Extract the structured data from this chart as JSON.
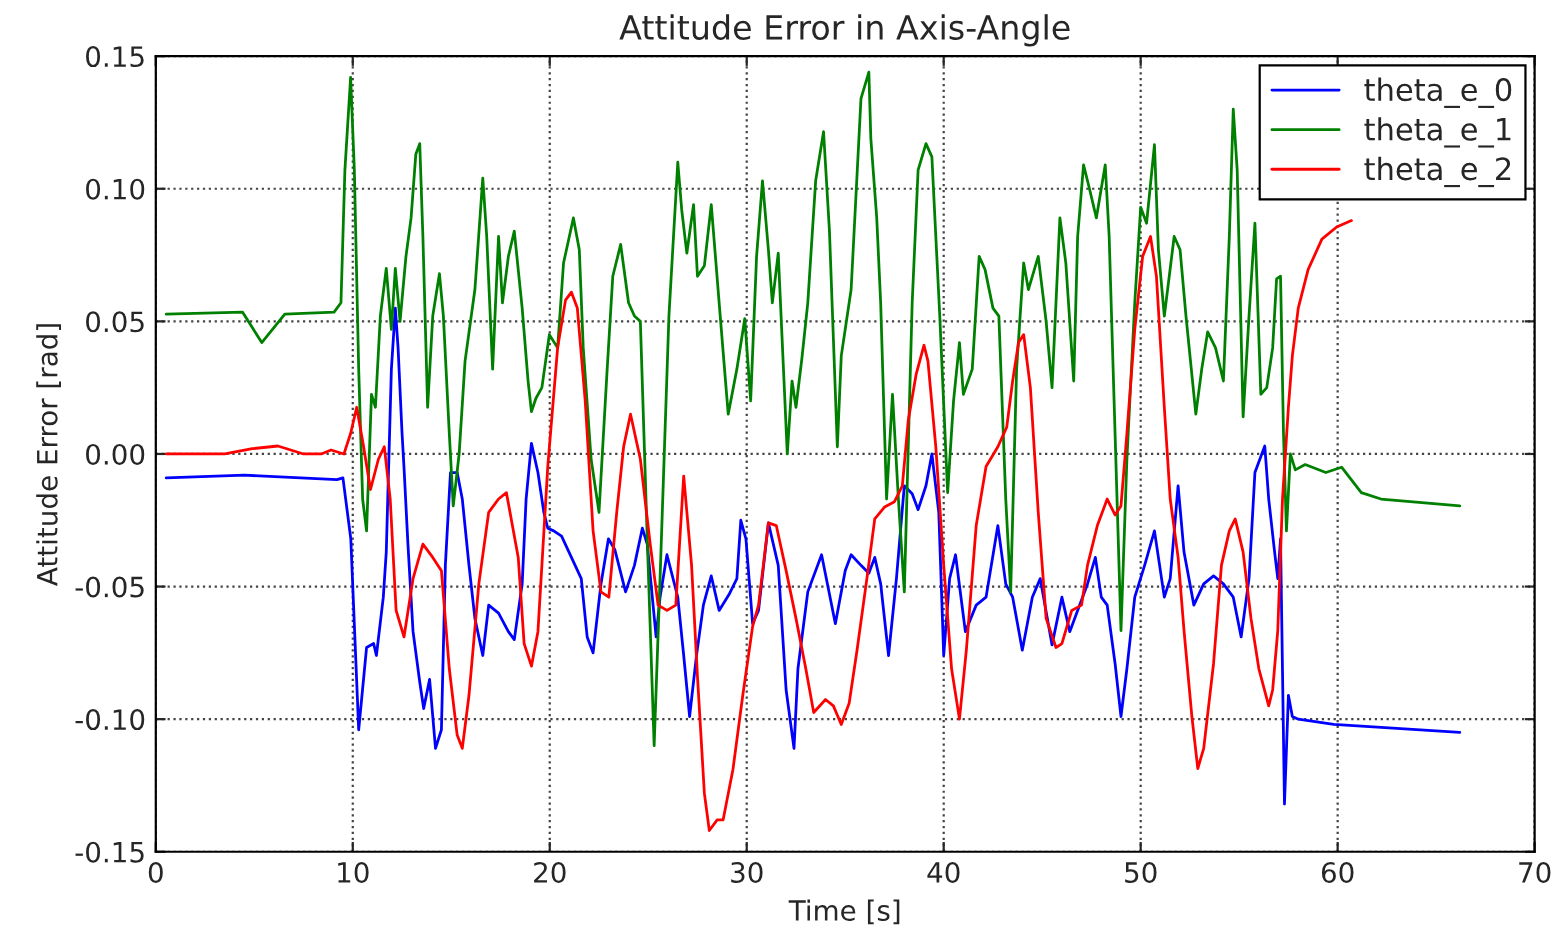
{
  "chart_data": {
    "type": "line",
    "title": "Attitude Error in Axis-Angle",
    "xlabel": "Time [s]",
    "ylabel": "Attitude Error [rad]",
    "xlim": [
      0,
      70
    ],
    "xticks": [
      0,
      10,
      20,
      30,
      40,
      50,
      60,
      70
    ],
    "ylim": [
      -0.15,
      0.15
    ],
    "yticks": [
      {
        "value": -0.15,
        "label": "-0.15"
      },
      {
        "value": -0.1,
        "label": "-0.10"
      },
      {
        "value": -0.05,
        "label": "-0.05"
      },
      {
        "value": 0,
        "label": "0.00"
      },
      {
        "value": 0.05,
        "label": "0.05"
      },
      {
        "value": 0.1,
        "label": "0.10"
      },
      {
        "value": 0.15,
        "label": "0.15"
      }
    ],
    "grid": true,
    "legend": "top right",
    "line_style": "solid",
    "marker": "none",
    "series": [
      {
        "name": "theta_e_0",
        "color": "#0000ff",
        "x": [
          0.53,
          4.5,
          9.2,
          9.5,
          9.9,
          10.3,
          10.7,
          11.06,
          11.2,
          11.55,
          11.7,
          11.96,
          12.16,
          12.3,
          12.5,
          12.6,
          12.8,
          13.06,
          13.4,
          13.6,
          13.9,
          14.2,
          14.5,
          14.7,
          14.96,
          15.3,
          15.56,
          15.9,
          16.2,
          16.6,
          16.9,
          17.4,
          17.9,
          18.2,
          18.6,
          18.8,
          19.07,
          19.4,
          19.7,
          19.9,
          20.2,
          20.6,
          21.1,
          21.6,
          21.9,
          22.2,
          22.6,
          22.98,
          23.3,
          23.85,
          24.3,
          24.7,
          24.95,
          25.4,
          25.6,
          25.95,
          26.5,
          26.8,
          27.1,
          27.45,
          27.8,
          28.2,
          28.6,
          29.1,
          29.5,
          29.7,
          29.96,
          30.3,
          30.6,
          31.1,
          31.6,
          32.0,
          32.4,
          32.6,
          33.1,
          33.8,
          34.5,
          35.0,
          35.3,
          35.8,
          36.2,
          36.5,
          36.8,
          37.2,
          37.6,
          38.0,
          38.4,
          38.7,
          39.1,
          39.4,
          39.75,
          40.0,
          40.3,
          40.6,
          41.1,
          41.65,
          42.15,
          42.75,
          43.15,
          43.5,
          43.99,
          44.5,
          44.9,
          45.5,
          46.0,
          46.4,
          46.8,
          47.3,
          47.7,
          48.0,
          48.3,
          48.7,
          49.0,
          49.3,
          49.7,
          50.2,
          50.7,
          51.2,
          51.5,
          51.9,
          52.2,
          52.7,
          53.2,
          53.7,
          54.2,
          54.7,
          55.1,
          55.5,
          55.8,
          56.3,
          56.5,
          56.8,
          56.96,
          57.1,
          57.3,
          57.5,
          57.7,
          58.0,
          59.8,
          66.2
        ],
        "values": [
          -0.009,
          -0.008,
          -0.0097,
          -0.009,
          -0.032,
          -0.104,
          -0.073,
          -0.0715,
          -0.076,
          -0.054,
          -0.037,
          0.032,
          0.055,
          0.04,
          0.008,
          -0.005,
          -0.034,
          -0.067,
          -0.086,
          -0.096,
          -0.085,
          -0.111,
          -0.104,
          -0.042,
          -0.007,
          -0.007,
          -0.017,
          -0.042,
          -0.062,
          -0.076,
          -0.057,
          -0.06,
          -0.067,
          -0.07,
          -0.049,
          -0.017,
          0.004,
          -0.007,
          -0.022,
          -0.028,
          -0.029,
          -0.031,
          -0.039,
          -0.047,
          -0.069,
          -0.075,
          -0.049,
          -0.032,
          -0.036,
          -0.052,
          -0.042,
          -0.028,
          -0.034,
          -0.069,
          -0.054,
          -0.038,
          -0.054,
          -0.076,
          -0.099,
          -0.076,
          -0.057,
          -0.046,
          -0.059,
          -0.053,
          -0.047,
          -0.025,
          -0.032,
          -0.064,
          -0.059,
          -0.026,
          -0.042,
          -0.089,
          -0.111,
          -0.081,
          -0.052,
          -0.038,
          -0.064,
          -0.044,
          -0.038,
          -0.042,
          -0.045,
          -0.039,
          -0.049,
          -0.076,
          -0.047,
          -0.012,
          -0.015,
          -0.021,
          -0.012,
          0.0,
          -0.022,
          -0.076,
          -0.047,
          -0.038,
          -0.067,
          -0.057,
          -0.054,
          -0.027,
          -0.049,
          -0.054,
          -0.074,
          -0.054,
          -0.047,
          -0.072,
          -0.054,
          -0.067,
          -0.059,
          -0.049,
          -0.039,
          -0.054,
          -0.057,
          -0.079,
          -0.099,
          -0.081,
          -0.054,
          -0.042,
          -0.029,
          -0.054,
          -0.047,
          -0.012,
          -0.037,
          -0.057,
          -0.049,
          -0.046,
          -0.049,
          -0.054,
          -0.069,
          -0.047,
          -0.007,
          0.003,
          -0.017,
          -0.037,
          -0.047,
          -0.032,
          -0.132,
          -0.091,
          -0.099,
          -0.1,
          -0.102,
          -0.105
        ]
      },
      {
        "name": "theta_e_1",
        "color": "#008000",
        "x": [
          0.53,
          4.4,
          5.38,
          6.55,
          9.05,
          9.4,
          9.6,
          9.89,
          10.08,
          10.3,
          10.5,
          10.7,
          10.95,
          11.15,
          11.4,
          11.7,
          11.96,
          12.16,
          12.4,
          12.7,
          12.96,
          13.2,
          13.4,
          13.56,
          13.8,
          14.06,
          14.4,
          14.6,
          14.9,
          15.1,
          15.4,
          15.7,
          16.2,
          16.6,
          16.8,
          17.1,
          17.4,
          17.6,
          17.9,
          18.2,
          18.6,
          18.9,
          19.07,
          19.3,
          19.6,
          19.98,
          20.4,
          20.7,
          21.2,
          21.5,
          21.7,
          22.1,
          22.5,
          22.9,
          23.2,
          23.6,
          24.0,
          24.3,
          24.6,
          24.95,
          25.3,
          25.6,
          26.05,
          26.5,
          26.7,
          26.96,
          27.3,
          27.5,
          27.85,
          28.2,
          28.6,
          29.06,
          29.5,
          29.9,
          30.2,
          30.5,
          30.8,
          31.1,
          31.3,
          31.6,
          32.06,
          32.3,
          32.5,
          32.8,
          33.1,
          33.5,
          33.9,
          34.2,
          34.6,
          34.8,
          35.3,
          35.8,
          36.2,
          36.3,
          36.6,
          36.8,
          37.1,
          37.4,
          37.7,
          38.0,
          38.4,
          38.7,
          39.1,
          39.4,
          39.8,
          40.2,
          40.5,
          40.8,
          41.0,
          41.45,
          41.8,
          42.1,
          42.5,
          42.8,
          43.15,
          43.4,
          43.7,
          44.06,
          44.3,
          44.8,
          45.2,
          45.5,
          45.9,
          46.2,
          46.6,
          46.8,
          47.1,
          47.4,
          47.75,
          48.2,
          48.4,
          48.7,
          49.0,
          49.3,
          49.7,
          50.0,
          50.3,
          50.7,
          50.9,
          51.2,
          51.7,
          52.0,
          52.3,
          52.8,
          53.1,
          53.4,
          53.8,
          54.2,
          54.5,
          54.7,
          54.9,
          55.2,
          55.5,
          55.8,
          56.1,
          56.4,
          56.7,
          56.9,
          57.1,
          57.25,
          57.4,
          57.6,
          57.85,
          58.35,
          59.4,
          60.2,
          61.2,
          62.2,
          66.2
        ],
        "values": [
          0.0527,
          0.0535,
          0.042,
          0.0527,
          0.0535,
          0.057,
          0.107,
          0.142,
          0.107,
          0.032,
          -0.017,
          -0.029,
          0.0225,
          0.0176,
          0.052,
          0.07,
          0.047,
          0.07,
          0.05,
          0.0745,
          0.089,
          0.113,
          0.117,
          0.082,
          0.0176,
          0.052,
          0.068,
          0.052,
          0.0077,
          -0.0196,
          0.0,
          0.035,
          0.062,
          0.104,
          0.082,
          0.032,
          0.082,
          0.057,
          0.0745,
          0.084,
          0.055,
          0.0275,
          0.016,
          0.021,
          0.025,
          0.045,
          0.04,
          0.072,
          0.089,
          0.077,
          0.04,
          -0.002,
          -0.022,
          0.03,
          0.067,
          0.079,
          0.057,
          0.052,
          0.05,
          -0.032,
          -0.11,
          -0.047,
          0.052,
          0.11,
          0.092,
          0.0757,
          0.094,
          0.067,
          0.071,
          0.094,
          0.057,
          0.015,
          0.032,
          0.051,
          0.02,
          0.0745,
          0.103,
          0.077,
          0.057,
          0.0757,
          0.0,
          0.0275,
          0.0176,
          0.036,
          0.057,
          0.103,
          0.1215,
          0.084,
          0.0027,
          0.037,
          0.062,
          0.134,
          0.144,
          0.119,
          0.089,
          0.057,
          -0.017,
          0.0225,
          -0.017,
          -0.052,
          0.057,
          0.107,
          0.117,
          0.112,
          0.052,
          -0.0146,
          0.02,
          0.042,
          0.0225,
          0.032,
          0.0745,
          0.0695,
          0.055,
          0.052,
          -0.017,
          -0.052,
          0.032,
          0.072,
          0.062,
          0.0745,
          0.05,
          0.025,
          0.089,
          0.072,
          0.0275,
          0.082,
          0.109,
          0.1,
          0.089,
          0.109,
          0.082,
          0.0077,
          -0.0666,
          -0.002,
          0.057,
          0.093,
          0.087,
          0.1166,
          0.077,
          0.052,
          0.082,
          0.077,
          0.052,
          0.015,
          0.032,
          0.046,
          0.04,
          0.0275,
          0.082,
          0.13,
          0.107,
          0.014,
          0.052,
          0.087,
          0.0225,
          0.025,
          0.04,
          0.066,
          0.067,
          0.0077,
          -0.029,
          0.0,
          -0.006,
          -0.004,
          -0.007,
          -0.005,
          -0.0146,
          -0.017,
          -0.0196
        ]
      },
      {
        "name": "theta_e_2",
        "color": "#ff0000",
        "x": [
          0.53,
          3.5,
          4.9,
          6.2,
          7.5,
          8.4,
          8.9,
          9.55,
          9.89,
          10.2,
          10.55,
          10.9,
          11.3,
          11.6,
          11.9,
          12.2,
          12.6,
          13.06,
          13.56,
          14.06,
          14.5,
          14.9,
          15.3,
          15.56,
          15.9,
          16.4,
          16.9,
          17.4,
          17.8,
          18.4,
          18.7,
          19.07,
          19.4,
          19.9,
          20.4,
          20.8,
          21.1,
          21.4,
          21.8,
          22.2,
          22.6,
          23.0,
          23.4,
          23.75,
          24.1,
          24.6,
          25.1,
          25.5,
          25.95,
          26.4,
          26.8,
          27.2,
          27.5,
          27.85,
          28.1,
          28.5,
          28.8,
          29.3,
          29.8,
          30.3,
          30.6,
          31.1,
          31.5,
          32.0,
          32.5,
          33.0,
          33.4,
          34.0,
          34.4,
          34.8,
          35.2,
          35.6,
          36.1,
          36.5,
          37.0,
          37.5,
          37.9,
          38.2,
          38.6,
          39.0,
          39.2,
          39.6,
          40.0,
          40.4,
          40.8,
          41.15,
          41.65,
          42.15,
          42.75,
          43.2,
          43.5,
          43.8,
          44.06,
          44.4,
          44.8,
          45.2,
          45.7,
          46.0,
          46.5,
          47.0,
          47.3,
          47.8,
          48.3,
          48.7,
          49.0,
          49.3,
          49.7,
          50.1,
          50.5,
          50.8,
          51.2,
          51.5,
          51.9,
          52.2,
          52.6,
          52.9,
          53.2,
          53.7,
          54.1,
          54.5,
          54.8,
          55.2,
          55.6,
          56.0,
          56.5,
          56.7,
          56.96,
          57.2,
          57.5,
          57.7,
          58.0,
          58.5,
          59.2,
          59.95,
          60.7
        ],
        "values": [
          0.0,
          0.0,
          0.002,
          0.003,
          0.0,
          0.0,
          0.0015,
          0.0,
          0.0077,
          0.0176,
          0.0027,
          -0.0134,
          -0.002,
          0.0027,
          -0.017,
          -0.059,
          -0.069,
          -0.047,
          -0.034,
          -0.039,
          -0.044,
          -0.081,
          -0.106,
          -0.111,
          -0.091,
          -0.049,
          -0.022,
          -0.017,
          -0.0146,
          -0.039,
          -0.0715,
          -0.08,
          -0.067,
          -0.0047,
          0.04,
          0.058,
          0.061,
          0.055,
          0.02,
          -0.029,
          -0.052,
          -0.054,
          -0.022,
          0.0027,
          0.015,
          -0.002,
          -0.034,
          -0.057,
          -0.059,
          -0.057,
          -0.0084,
          -0.042,
          -0.084,
          -0.128,
          -0.142,
          -0.138,
          -0.138,
          -0.119,
          -0.091,
          -0.065,
          -0.057,
          -0.026,
          -0.027,
          -0.044,
          -0.062,
          -0.081,
          -0.0975,
          -0.0926,
          -0.095,
          -0.102,
          -0.094,
          -0.074,
          -0.047,
          -0.0245,
          -0.02,
          -0.018,
          -0.012,
          0.0126,
          0.03,
          0.041,
          0.035,
          0.0027,
          -0.042,
          -0.081,
          -0.1,
          -0.074,
          -0.027,
          -0.0047,
          0.0027,
          0.0101,
          0.0275,
          0.042,
          0.045,
          0.025,
          -0.022,
          -0.062,
          -0.073,
          -0.0715,
          -0.059,
          -0.057,
          -0.042,
          -0.027,
          -0.017,
          -0.023,
          -0.0196,
          0.0077,
          0.047,
          0.0745,
          0.082,
          0.067,
          0.0176,
          -0.017,
          -0.039,
          -0.0666,
          -0.099,
          -0.1186,
          -0.111,
          -0.079,
          -0.042,
          -0.029,
          -0.0245,
          -0.037,
          -0.062,
          -0.081,
          -0.095,
          -0.089,
          -0.0666,
          -0.017,
          0.0176,
          0.037,
          0.055,
          0.0695,
          0.081,
          0.0856,
          0.088
        ]
      }
    ]
  }
}
